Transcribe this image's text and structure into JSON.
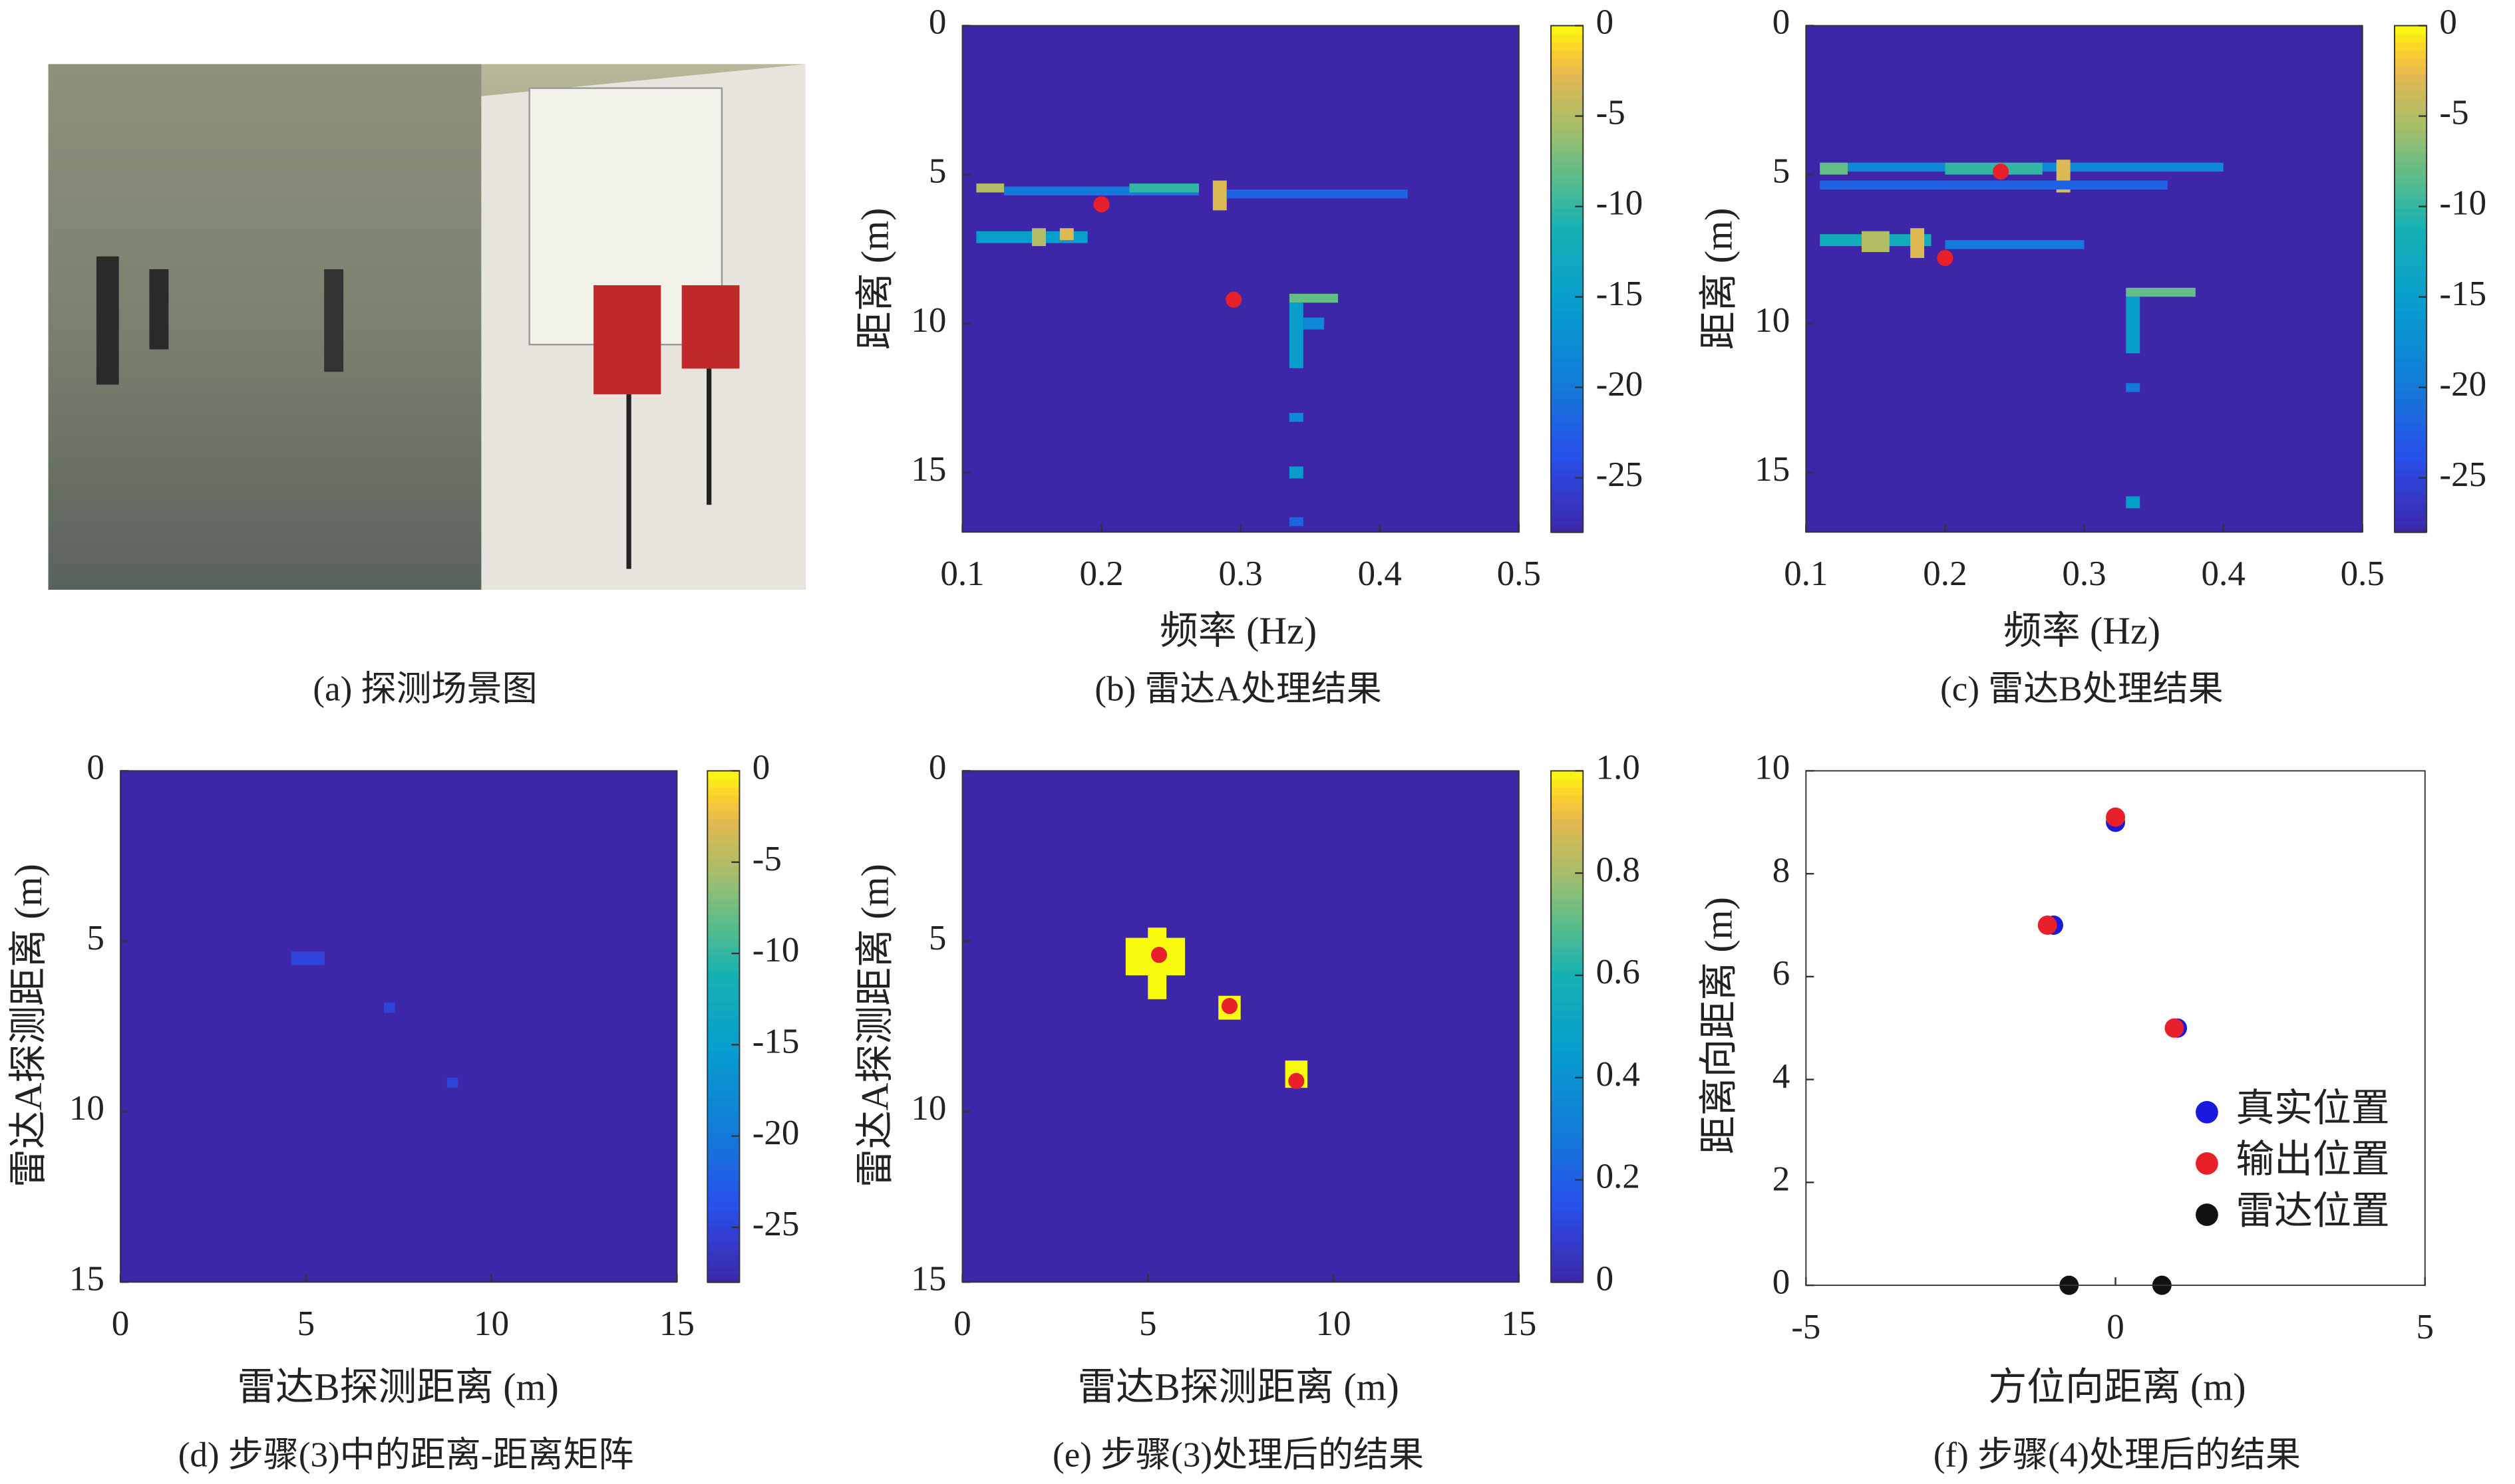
{
  "chart_data": [
    {
      "type": "image",
      "caption": "(a) 探测场景图"
    },
    {
      "type": "heatmap",
      "caption": "(b) 雷达A处理结果",
      "xlabel": "频率 (Hz)",
      "ylabel": "距离 (m)",
      "xlim": [
        0.1,
        0.5
      ],
      "xticks": [
        0.1,
        0.2,
        0.3,
        0.4,
        0.5
      ],
      "ylim": [
        0,
        17
      ],
      "yticks": [
        0,
        5,
        10,
        15
      ],
      "yreverse": true,
      "colormap": "parula",
      "clim": [
        -28,
        0
      ],
      "cticks": [
        0,
        -5,
        -10,
        -15,
        -20,
        -25
      ],
      "background": -28,
      "cells": [
        {
          "x": [
            0.11,
            0.13
          ],
          "y": [
            5.3,
            5.6
          ],
          "value": -5
        },
        {
          "x": [
            0.13,
            0.27
          ],
          "y": [
            5.4,
            5.7
          ],
          "value": -20
        },
        {
          "x": [
            0.22,
            0.27
          ],
          "y": [
            5.3,
            5.6
          ],
          "value": -10
        },
        {
          "x": [
            0.28,
            0.29
          ],
          "y": [
            5.2,
            6.2
          ],
          "value": -3
        },
        {
          "x": [
            0.29,
            0.42
          ],
          "y": [
            5.5,
            5.8
          ],
          "value": -22
        },
        {
          "x": [
            0.11,
            0.19
          ],
          "y": [
            6.9,
            7.3
          ],
          "value": -15
        },
        {
          "x": [
            0.15,
            0.16
          ],
          "y": [
            6.8,
            7.4
          ],
          "value": -5
        },
        {
          "x": [
            0.17,
            0.18
          ],
          "y": [
            6.8,
            7.2
          ],
          "value": -3
        },
        {
          "x": [
            0.335,
            0.37
          ],
          "y": [
            9.0,
            9.3
          ],
          "value": -8
        },
        {
          "x": [
            0.335,
            0.345
          ],
          "y": [
            9.3,
            11.5
          ],
          "value": -15
        },
        {
          "x": [
            0.345,
            0.36
          ],
          "y": [
            9.8,
            10.2
          ],
          "value": -18
        },
        {
          "x": [
            0.335,
            0.345
          ],
          "y": [
            13.0,
            13.3
          ],
          "value": -18
        },
        {
          "x": [
            0.335,
            0.345
          ],
          "y": [
            14.8,
            15.2
          ],
          "value": -15
        },
        {
          "x": [
            0.335,
            0.345
          ],
          "y": [
            16.5,
            16.8
          ],
          "value": -22
        }
      ],
      "markers": {
        "color": "#e8202a",
        "x": [
          0.2,
          0.295
        ],
        "y": [
          6.0,
          9.2
        ]
      }
    },
    {
      "type": "heatmap",
      "caption": "(c) 雷达B处理结果",
      "xlabel": "频率 (Hz)",
      "ylabel": "距离 (m)",
      "xlim": [
        0.1,
        0.5
      ],
      "xticks": [
        0.1,
        0.2,
        0.3,
        0.4,
        0.5
      ],
      "ylim": [
        0,
        17
      ],
      "yticks": [
        0,
        5,
        10,
        15
      ],
      "yreverse": true,
      "colormap": "parula",
      "clim": [
        -28,
        0
      ],
      "cticks": [
        0,
        -5,
        -10,
        -15,
        -20,
        -25
      ],
      "background": -28,
      "cells": [
        {
          "x": [
            0.11,
            0.4
          ],
          "y": [
            4.6,
            4.9
          ],
          "value": -18
        },
        {
          "x": [
            0.11,
            0.13
          ],
          "y": [
            4.6,
            5.0
          ],
          "value": -8
        },
        {
          "x": [
            0.2,
            0.27
          ],
          "y": [
            4.6,
            5.0
          ],
          "value": -10
        },
        {
          "x": [
            0.28,
            0.29
          ],
          "y": [
            4.5,
            5.6
          ],
          "value": -3
        },
        {
          "x": [
            0.11,
            0.36
          ],
          "y": [
            5.2,
            5.5
          ],
          "value": -22
        },
        {
          "x": [
            0.11,
            0.19
          ],
          "y": [
            7.0,
            7.4
          ],
          "value": -12
        },
        {
          "x": [
            0.14,
            0.16
          ],
          "y": [
            6.9,
            7.6
          ],
          "value": -5
        },
        {
          "x": [
            0.175,
            0.185
          ],
          "y": [
            6.8,
            7.8
          ],
          "value": -3
        },
        {
          "x": [
            0.2,
            0.3
          ],
          "y": [
            7.2,
            7.5
          ],
          "value": -20
        },
        {
          "x": [
            0.33,
            0.38
          ],
          "y": [
            8.8,
            9.1
          ],
          "value": -8
        },
        {
          "x": [
            0.33,
            0.34
          ],
          "y": [
            9.1,
            11.0
          ],
          "value": -15
        },
        {
          "x": [
            0.33,
            0.34
          ],
          "y": [
            12.0,
            12.3
          ],
          "value": -20
        },
        {
          "x": [
            0.33,
            0.34
          ],
          "y": [
            15.8,
            16.2
          ],
          "value": -15
        }
      ],
      "markers": {
        "color": "#e8202a",
        "x": [
          0.24,
          0.2
        ],
        "y": [
          4.9,
          7.8
        ]
      }
    },
    {
      "type": "heatmap",
      "caption": "(d) 步骤(3)中的距离-距离矩阵",
      "xlabel": "雷达B探测距离 (m)",
      "ylabel": "雷达A探测距离 (m)",
      "xlim": [
        0,
        15
      ],
      "xticks": [
        0,
        5,
        10,
        15
      ],
      "ylim": [
        0,
        15
      ],
      "yticks": [
        0,
        5,
        10,
        15
      ],
      "yreverse": true,
      "colormap": "parula",
      "clim": [
        -28,
        0
      ],
      "cticks": [
        0,
        -5,
        -10,
        -15,
        -20,
        -25
      ],
      "background": -28,
      "cells": [
        {
          "x": [
            4.6,
            5.5
          ],
          "y": [
            5.3,
            5.7
          ],
          "value": -25
        },
        {
          "x": [
            7.1,
            7.4
          ],
          "y": [
            6.8,
            7.1
          ],
          "value": -25
        },
        {
          "x": [
            8.8,
            9.1
          ],
          "y": [
            9.0,
            9.3
          ],
          "value": -25
        }
      ]
    },
    {
      "type": "heatmap",
      "caption": "(e) 步骤(3)处理后的结果",
      "xlabel": "雷达B探测距离 (m)",
      "ylabel": "雷达A探测距离 (m)",
      "xlim": [
        0,
        15
      ],
      "xticks": [
        0,
        5,
        10,
        15
      ],
      "ylim": [
        0,
        15
      ],
      "yticks": [
        0,
        5,
        10,
        15
      ],
      "yreverse": true,
      "colormap": "parula",
      "clim": [
        0,
        1
      ],
      "cticks": [
        0,
        0.2,
        0.4,
        0.6,
        0.8,
        {
          "value": 1,
          "label": "1.0"
        }
      ],
      "background": 0,
      "cells": [
        {
          "x": [
            4.4,
            6.0
          ],
          "y": [
            4.9,
            6.0
          ],
          "value": 1
        },
        {
          "x": [
            5.0,
            5.5
          ],
          "y": [
            4.6,
            6.7
          ],
          "value": 1
        },
        {
          "x": [
            6.9,
            7.5
          ],
          "y": [
            6.6,
            7.3
          ],
          "value": 1
        },
        {
          "x": [
            8.7,
            9.3
          ],
          "y": [
            8.5,
            9.3
          ],
          "value": 1
        }
      ],
      "markers": {
        "color": "#e8202a",
        "x": [
          5.3,
          7.2,
          9.0
        ],
        "y": [
          5.4,
          6.9,
          9.1
        ]
      }
    },
    {
      "type": "scatter",
      "caption": "(f) 步骤(4)处理后的结果",
      "xlabel": "方位向距离 (m)",
      "ylabel": "距离向距离 (m)",
      "xlim": [
        -5,
        5
      ],
      "xticks": [
        -5,
        0,
        5
      ],
      "ylim": [
        0,
        10
      ],
      "yticks": [
        0,
        2,
        4,
        6,
        8,
        10
      ],
      "legend": "lower right",
      "series": [
        {
          "name": "真实位置",
          "color": "#1a1adf",
          "x": [
            0,
            -1,
            1
          ],
          "values": [
            9,
            7,
            5
          ]
        },
        {
          "name": "输出位置",
          "color": "#e8202a",
          "x": [
            0,
            -1.1,
            0.95
          ],
          "values": [
            9.1,
            7,
            5
          ]
        },
        {
          "name": "雷达位置",
          "color": "#111111",
          "x": [
            -0.75,
            0.75
          ],
          "values": [
            0,
            0
          ]
        }
      ]
    }
  ]
}
